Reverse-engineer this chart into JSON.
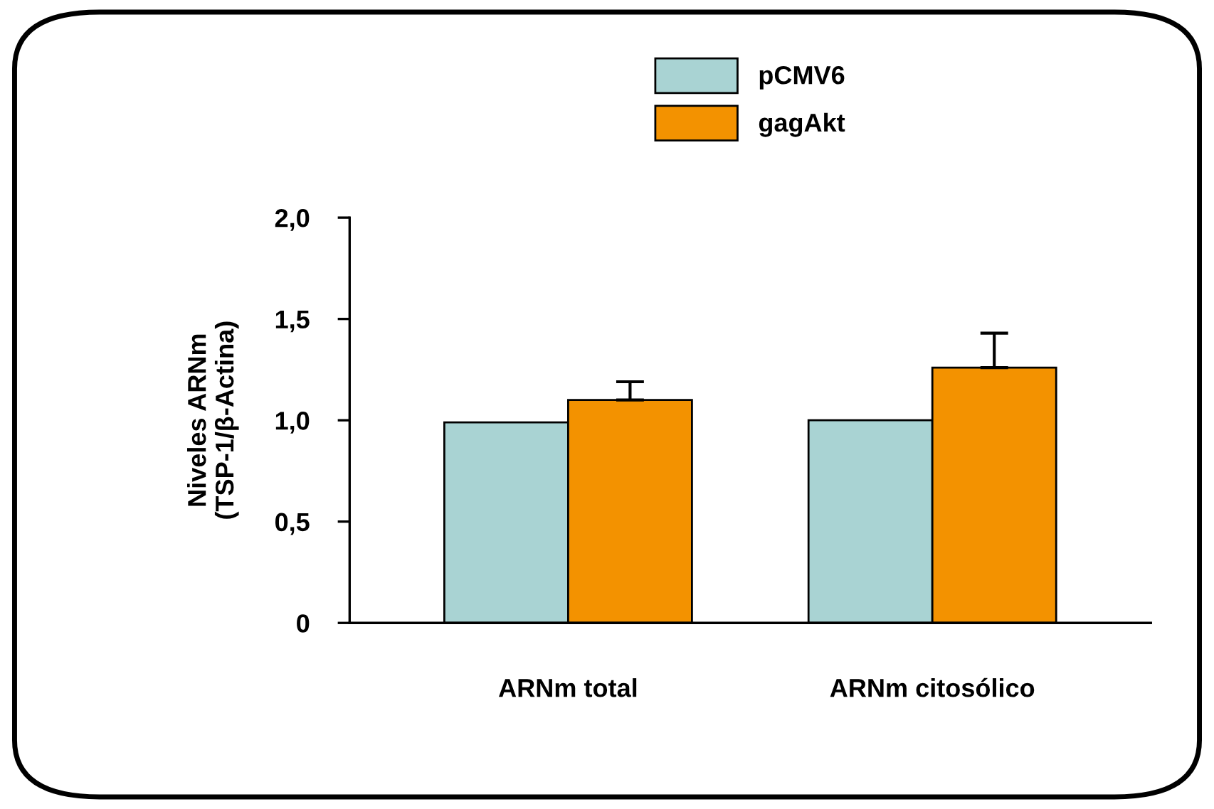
{
  "chart_data": {
    "type": "bar",
    "ylabel": "Niveles ARNm\n(TSP-1/β-Actina)",
    "categories": [
      "ARNm total",
      "ARNm citosólico"
    ],
    "series": [
      {
        "name": "pCMV6",
        "color": "#a9d3d3",
        "values": [
          0.99,
          1.0
        ]
      },
      {
        "name": "gagAkt",
        "color": "#f39200",
        "values": [
          1.1,
          1.26
        ],
        "errors": [
          [
            1.1,
            1.19
          ],
          [
            1.26,
            1.43
          ]
        ]
      }
    ],
    "ylim": [
      0,
      2.0
    ],
    "yticks": [
      {
        "value": 0,
        "label": "0"
      },
      {
        "value": 0.5,
        "label": "0,5"
      },
      {
        "value": 1.0,
        "label": "1,0"
      },
      {
        "value": 1.5,
        "label": "1,5"
      },
      {
        "value": 2.0,
        "label": "2,0"
      }
    ],
    "grid": false,
    "legend": "top"
  }
}
